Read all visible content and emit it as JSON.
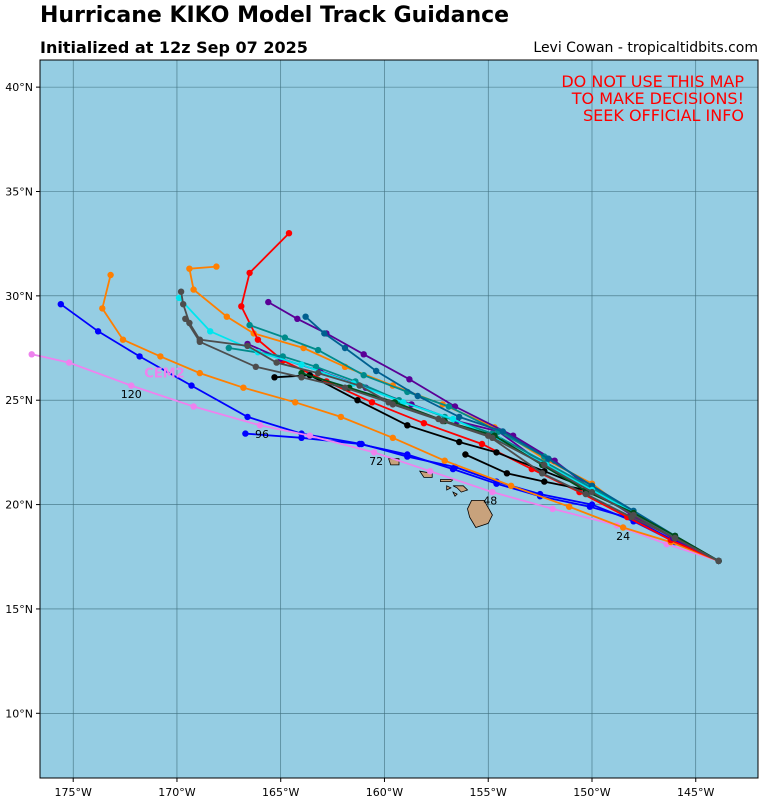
{
  "header": {
    "title": "Hurricane KIKO Model Track Guidance",
    "subtitle": "Initialized at 12z Sep 07 2025",
    "credit": "Levi Cowan - tropicaltidbits.com"
  },
  "warning": {
    "line1": "DO NOT USE THIS MAP",
    "line2": "TO MAKE DECISIONS!",
    "line3": "SEEK OFFICIAL INFO"
  },
  "map": {
    "lon_range": [
      -176.6,
      -142.0
    ],
    "lat_range": [
      6.9,
      41.3
    ],
    "lon_ticks": [
      -175,
      -170,
      -165,
      -160,
      -155,
      -150,
      -145
    ],
    "lon_tick_labels": [
      "175°W",
      "170°W",
      "165°W",
      "160°W",
      "155°W",
      "150°W",
      "145°W"
    ],
    "lat_ticks": [
      10,
      15,
      20,
      25,
      30,
      35,
      40
    ],
    "lat_tick_labels": [
      "10°N",
      "15°N",
      "20°N",
      "25°N",
      "30°N",
      "35°N",
      "40°N"
    ],
    "ocean_color": "#95cde3",
    "land_color": "#c8a27c",
    "grid_color": "#3f6f7e"
  },
  "hour_labels": [
    {
      "text": "24",
      "lon": -148.5,
      "lat": 18.3
    },
    {
      "text": "48",
      "lon": -154.9,
      "lat": 20.0
    },
    {
      "text": "72",
      "lon": -160.4,
      "lat": 21.9
    },
    {
      "text": "96",
      "lon": -165.9,
      "lat": 23.2
    },
    {
      "text": "120",
      "lon": -172.2,
      "lat": 25.1
    }
  ],
  "model_label": {
    "text": "CEM2",
    "lon": -170.6,
    "lat": 26.1,
    "color": "#ee82ee"
  },
  "chart_data": {
    "type": "map_tracks",
    "series": [
      {
        "color": "#0000ff",
        "points": [
          [
            -143.9,
            17.3
          ],
          [
            -146.0,
            18.2
          ],
          [
            -148.0,
            19.2
          ],
          [
            -150.0,
            20.0
          ],
          [
            -152.5,
            20.5
          ],
          [
            -154.6,
            21.1
          ],
          [
            -156.6,
            21.8
          ],
          [
            -158.9,
            22.3
          ],
          [
            -161.1,
            22.9
          ],
          [
            -164.0,
            23.4
          ],
          [
            -166.6,
            24.2
          ],
          [
            -169.3,
            25.7
          ],
          [
            -171.8,
            27.1
          ],
          [
            -173.8,
            28.3
          ],
          [
            -175.6,
            29.6
          ]
        ]
      },
      {
        "color": "#0000ff",
        "points": [
          [
            -143.9,
            17.3
          ],
          [
            -146.1,
            18.3
          ],
          [
            -148.0,
            19.3
          ],
          [
            -150.1,
            19.9
          ],
          [
            -152.5,
            20.4
          ],
          [
            -154.6,
            21.0
          ],
          [
            -156.7,
            21.7
          ],
          [
            -158.9,
            22.4
          ],
          [
            -161.2,
            22.9
          ],
          [
            -164.0,
            23.2
          ],
          [
            -166.7,
            23.4
          ]
        ]
      },
      {
        "color": "#ee82ee",
        "points": [
          [
            -143.9,
            17.3
          ],
          [
            -146.4,
            18.1
          ],
          [
            -148.8,
            19.0
          ],
          [
            -151.9,
            19.8
          ],
          [
            -154.8,
            20.6
          ],
          [
            -157.8,
            21.6
          ],
          [
            -160.5,
            22.5
          ],
          [
            -163.6,
            23.3
          ],
          [
            -166.0,
            23.8
          ],
          [
            -169.2,
            24.7
          ],
          [
            -172.2,
            25.7
          ],
          [
            -175.2,
            26.8
          ],
          [
            -177.0,
            27.2
          ]
        ]
      },
      {
        "color": "#ff7f00",
        "points": [
          [
            -143.9,
            17.3
          ],
          [
            -146.2,
            18.2
          ],
          [
            -148.5,
            18.9
          ],
          [
            -151.1,
            19.9
          ],
          [
            -153.9,
            20.9
          ],
          [
            -157.1,
            22.1
          ],
          [
            -159.6,
            23.2
          ],
          [
            -162.1,
            24.2
          ],
          [
            -164.3,
            24.9
          ],
          [
            -166.8,
            25.6
          ],
          [
            -168.9,
            26.3
          ],
          [
            -170.8,
            27.1
          ],
          [
            -172.6,
            27.9
          ],
          [
            -173.6,
            29.4
          ],
          [
            -173.2,
            31.0
          ]
        ]
      },
      {
        "color": "#ff7f00",
        "points": [
          [
            -143.9,
            17.3
          ],
          [
            -146.0,
            18.4
          ],
          [
            -148.0,
            19.5
          ],
          [
            -150.0,
            21.0
          ],
          [
            -152.3,
            22.2
          ],
          [
            -154.7,
            23.7
          ],
          [
            -157.2,
            24.8
          ],
          [
            -159.6,
            25.7
          ],
          [
            -161.9,
            26.6
          ],
          [
            -163.9,
            27.5
          ],
          [
            -166.3,
            28.2
          ],
          [
            -167.6,
            29.0
          ],
          [
            -169.2,
            30.3
          ],
          [
            -169.4,
            31.3
          ],
          [
            -168.1,
            31.4
          ]
        ]
      },
      {
        "color": "#ff0000",
        "points": [
          [
            -143.9,
            17.3
          ],
          [
            -146.2,
            18.3
          ],
          [
            -148.3,
            19.4
          ],
          [
            -150.6,
            20.6
          ],
          [
            -152.9,
            21.7
          ],
          [
            -155.3,
            22.9
          ],
          [
            -158.1,
            23.9
          ],
          [
            -160.6,
            24.9
          ],
          [
            -162.8,
            25.9
          ],
          [
            -164.9,
            26.9
          ],
          [
            -166.1,
            27.9
          ],
          [
            -166.9,
            29.5
          ],
          [
            -166.5,
            31.1
          ],
          [
            -164.6,
            33.0
          ]
        ]
      },
      {
        "color": "#000000",
        "points": [
          [
            -143.9,
            17.3
          ],
          [
            -146.0,
            18.5
          ],
          [
            -148.0,
            19.6
          ],
          [
            -150.0,
            20.7
          ],
          [
            -152.3,
            21.6
          ],
          [
            -154.6,
            22.5
          ],
          [
            -156.4,
            23.0
          ],
          [
            -158.9,
            23.8
          ],
          [
            -161.3,
            25.0
          ],
          [
            -163.6,
            26.2
          ],
          [
            -165.3,
            26.1
          ]
        ]
      },
      {
        "color": "#000000",
        "points": [
          [
            -143.9,
            17.3
          ],
          [
            -146.0,
            18.4
          ],
          [
            -148.1,
            19.6
          ],
          [
            -150.3,
            20.7
          ],
          [
            -152.3,
            21.1
          ],
          [
            -154.1,
            21.5
          ],
          [
            -156.1,
            22.4
          ]
        ]
      },
      {
        "color": "#5a0096",
        "points": [
          [
            -143.9,
            17.3
          ],
          [
            -146.1,
            18.4
          ],
          [
            -148.1,
            19.5
          ],
          [
            -150.1,
            20.8
          ],
          [
            -151.8,
            22.1
          ],
          [
            -153.8,
            23.3
          ],
          [
            -156.6,
            24.7
          ],
          [
            -158.8,
            26.0
          ],
          [
            -161.0,
            27.2
          ],
          [
            -162.8,
            28.2
          ],
          [
            -164.2,
            28.9
          ],
          [
            -165.6,
            29.7
          ]
        ]
      },
      {
        "color": "#5a0096",
        "points": [
          [
            -143.9,
            17.3
          ],
          [
            -146.0,
            18.4
          ],
          [
            -148.0,
            19.5
          ],
          [
            -150.1,
            20.8
          ],
          [
            -152.3,
            21.9
          ],
          [
            -154.5,
            23.5
          ],
          [
            -156.5,
            24.0
          ],
          [
            -158.7,
            24.8
          ],
          [
            -160.9,
            25.6
          ],
          [
            -163.1,
            26.4
          ],
          [
            -165.0,
            27.0
          ],
          [
            -166.6,
            27.7
          ]
        ]
      },
      {
        "color": "#008b8b",
        "points": [
          [
            -143.9,
            17.3
          ],
          [
            -146.0,
            18.4
          ],
          [
            -148.0,
            19.6
          ],
          [
            -150.0,
            20.8
          ],
          [
            -152.2,
            22.0
          ],
          [
            -154.8,
            23.4
          ],
          [
            -157.1,
            24.2
          ],
          [
            -159.3,
            25.0
          ],
          [
            -161.4,
            25.9
          ],
          [
            -163.3,
            26.6
          ],
          [
            -164.9,
            27.1
          ],
          [
            -167.5,
            27.5
          ]
        ]
      },
      {
        "color": "#008b8b",
        "points": [
          [
            -143.9,
            17.3
          ],
          [
            -146.0,
            18.4
          ],
          [
            -148.0,
            19.6
          ],
          [
            -150.0,
            20.9
          ],
          [
            -152.3,
            22.3
          ],
          [
            -154.5,
            23.5
          ],
          [
            -156.9,
            24.7
          ],
          [
            -158.9,
            25.4
          ],
          [
            -161.0,
            26.2
          ],
          [
            -163.2,
            27.4
          ],
          [
            -164.8,
            28.0
          ],
          [
            -166.5,
            28.6
          ]
        ]
      },
      {
        "color": "#006090",
        "points": [
          [
            -143.9,
            17.3
          ],
          [
            -146.0,
            18.5
          ],
          [
            -148.0,
            19.7
          ],
          [
            -150.0,
            20.9
          ],
          [
            -152.1,
            22.2
          ],
          [
            -154.3,
            23.5
          ],
          [
            -156.4,
            24.2
          ],
          [
            -158.4,
            25.2
          ],
          [
            -160.4,
            26.4
          ],
          [
            -161.9,
            27.5
          ],
          [
            -162.9,
            28.2
          ],
          [
            -163.8,
            29.0
          ]
        ]
      },
      {
        "color": "#00e5ee",
        "points": [
          [
            -143.9,
            17.3
          ],
          [
            -146.0,
            18.4
          ],
          [
            -148.0,
            19.6
          ],
          [
            -150.0,
            20.7
          ],
          [
            -152.2,
            21.9
          ],
          [
            -154.5,
            23.1
          ],
          [
            -156.7,
            24.1
          ],
          [
            -159.1,
            24.9
          ],
          [
            -161.5,
            25.8
          ],
          [
            -164.0,
            26.7
          ],
          [
            -166.1,
            27.3
          ],
          [
            -168.4,
            28.3
          ],
          [
            -169.9,
            29.9
          ]
        ]
      },
      {
        "color": "#004d1a",
        "points": [
          [
            -143.9,
            17.3
          ],
          [
            -146.0,
            18.5
          ],
          [
            -148.0,
            19.6
          ],
          [
            -150.2,
            20.6
          ],
          [
            -152.4,
            21.9
          ],
          [
            -154.7,
            23.3
          ],
          [
            -157.1,
            24.0
          ],
          [
            -159.5,
            24.9
          ],
          [
            -161.7,
            25.6
          ],
          [
            -164.0,
            26.3
          ]
        ]
      },
      {
        "color": "#4d4d4d",
        "points": [
          [
            -143.9,
            17.3
          ],
          [
            -146.0,
            18.4
          ],
          [
            -148.0,
            19.5
          ],
          [
            -150.0,
            20.6
          ],
          [
            -152.3,
            21.9
          ],
          [
            -154.8,
            23.2
          ],
          [
            -157.2,
            24.0
          ],
          [
            -159.6,
            24.8
          ],
          [
            -161.2,
            25.7
          ],
          [
            -163.2,
            26.3
          ],
          [
            -165.2,
            26.8
          ],
          [
            -166.6,
            27.6
          ],
          [
            -168.9,
            27.9
          ],
          [
            -169.4,
            28.7
          ],
          [
            -169.7,
            29.6
          ],
          [
            -169.8,
            30.2
          ]
        ]
      },
      {
        "color": "#4d4d4d",
        "points": [
          [
            -143.9,
            17.3
          ],
          [
            -146.0,
            18.4
          ],
          [
            -148.1,
            19.4
          ],
          [
            -150.3,
            20.5
          ],
          [
            -152.4,
            21.5
          ],
          [
            -155.0,
            23.3
          ],
          [
            -157.4,
            24.1
          ],
          [
            -159.8,
            24.9
          ],
          [
            -161.9,
            25.6
          ],
          [
            -164.0,
            26.1
          ],
          [
            -166.2,
            26.6
          ],
          [
            -168.9,
            27.8
          ],
          [
            -169.6,
            28.9
          ]
        ]
      }
    ]
  },
  "islands": [
    [
      [
        -155.8,
        20.2
      ],
      [
        -155.2,
        20.2
      ],
      [
        -154.8,
        19.5
      ],
      [
        -155.0,
        19.1
      ],
      [
        -155.6,
        18.9
      ],
      [
        -155.9,
        19.4
      ],
      [
        -156.0,
        19.8
      ]
    ],
    [
      [
        -156.7,
        20.9
      ],
      [
        -156.2,
        20.9
      ],
      [
        -156.0,
        20.7
      ],
      [
        -156.3,
        20.6
      ],
      [
        -156.5,
        20.8
      ]
    ],
    [
      [
        -157.3,
        21.2
      ],
      [
        -156.7,
        21.2
      ],
      [
        -156.8,
        21.1
      ],
      [
        -157.3,
        21.1
      ]
    ],
    [
      [
        -158.3,
        21.6
      ],
      [
        -157.7,
        21.5
      ],
      [
        -157.7,
        21.3
      ],
      [
        -158.1,
        21.3
      ]
    ],
    [
      [
        -159.8,
        22.2
      ],
      [
        -159.3,
        22.2
      ],
      [
        -159.3,
        21.9
      ],
      [
        -159.7,
        21.9
      ]
    ],
    [
      [
        -156.7,
        20.6
      ],
      [
        -156.5,
        20.5
      ],
      [
        -156.6,
        20.4
      ]
    ],
    [
      [
        -157.0,
        20.9
      ],
      [
        -156.8,
        20.8
      ],
      [
        -157.0,
        20.7
      ]
    ]
  ]
}
